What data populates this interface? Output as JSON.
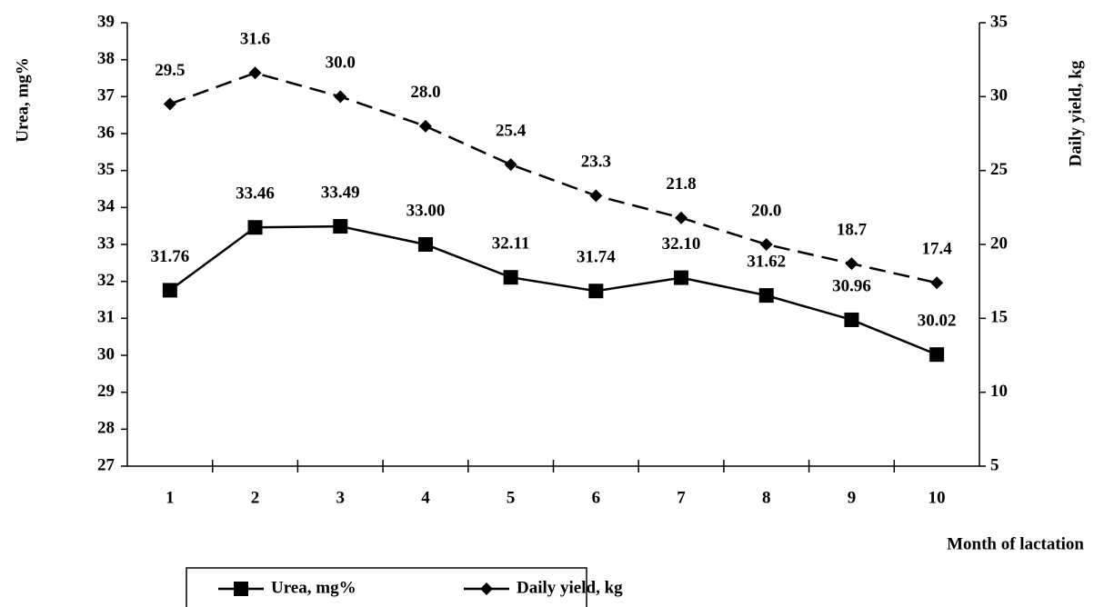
{
  "chart_data": {
    "type": "line",
    "x_label": "Month of lactation",
    "y_label": "Urea, mg%",
    "y2_label": "Daily yield, kg",
    "categories": [
      "1",
      "2",
      "3",
      "4",
      "5",
      "6",
      "7",
      "8",
      "9",
      "10"
    ],
    "series": [
      {
        "name": "Urea, mg%",
        "color": "#000000",
        "marker": "square",
        "dash": "solid",
        "axis": "y",
        "values": [
          31.76,
          33.46,
          33.49,
          33.0,
          32.11,
          31.74,
          32.1,
          31.62,
          30.96,
          30.02
        ],
        "value_labels": [
          "31.76",
          "33.46",
          "33.49",
          "33.00",
          "32.11",
          "31.74",
          "32.10",
          "31.62",
          "30.96",
          "30.02"
        ]
      },
      {
        "name": "Daily yield, kg",
        "color": "#000000",
        "marker": "diamond",
        "dash": "dashed",
        "axis": "y2",
        "values": [
          29.5,
          31.6,
          30.0,
          28.0,
          25.4,
          23.3,
          21.8,
          20.0,
          18.7,
          17.4
        ],
        "value_labels": [
          "29.5",
          "31.6",
          "30.0",
          "28.0",
          "25.4",
          "23.3",
          "21.8",
          "20.0",
          "18.7",
          "17.4"
        ]
      }
    ],
    "ylim": [
      27,
      39
    ],
    "yticks": [
      27,
      28,
      29,
      30,
      31,
      32,
      33,
      34,
      35,
      36,
      37,
      38,
      39
    ],
    "y2lim": [
      5,
      35
    ],
    "y2ticks": [
      5,
      10,
      15,
      20,
      25,
      30,
      35
    ],
    "grid": false,
    "legend": "bottom"
  }
}
